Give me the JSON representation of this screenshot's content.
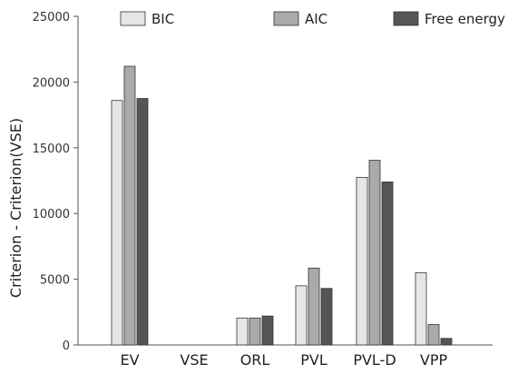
{
  "chart_data": {
    "type": "bar",
    "title": "",
    "xlabel": "",
    "ylabel": "Criterion - Criterion(VSE)",
    "ylim": [
      0,
      25000
    ],
    "yticks": [
      0,
      5000,
      10000,
      15000,
      20000,
      25000
    ],
    "categories": [
      "EV",
      "VSE",
      "ORL",
      "PVL",
      "PVL-D",
      "VPP"
    ],
    "series": [
      {
        "name": "BIC",
        "color": "#e6e6e6",
        "values": [
          18600,
          0,
          2050,
          4500,
          12750,
          5500
        ]
      },
      {
        "name": "AIC",
        "color": "#aaaaaa",
        "values": [
          21200,
          0,
          2050,
          5850,
          14050,
          1550
        ]
      },
      {
        "name": "Free energy",
        "color": "#555555",
        "values": [
          18750,
          0,
          2200,
          4300,
          12400,
          500
        ]
      }
    ],
    "legend_position": "top",
    "grid": false
  }
}
